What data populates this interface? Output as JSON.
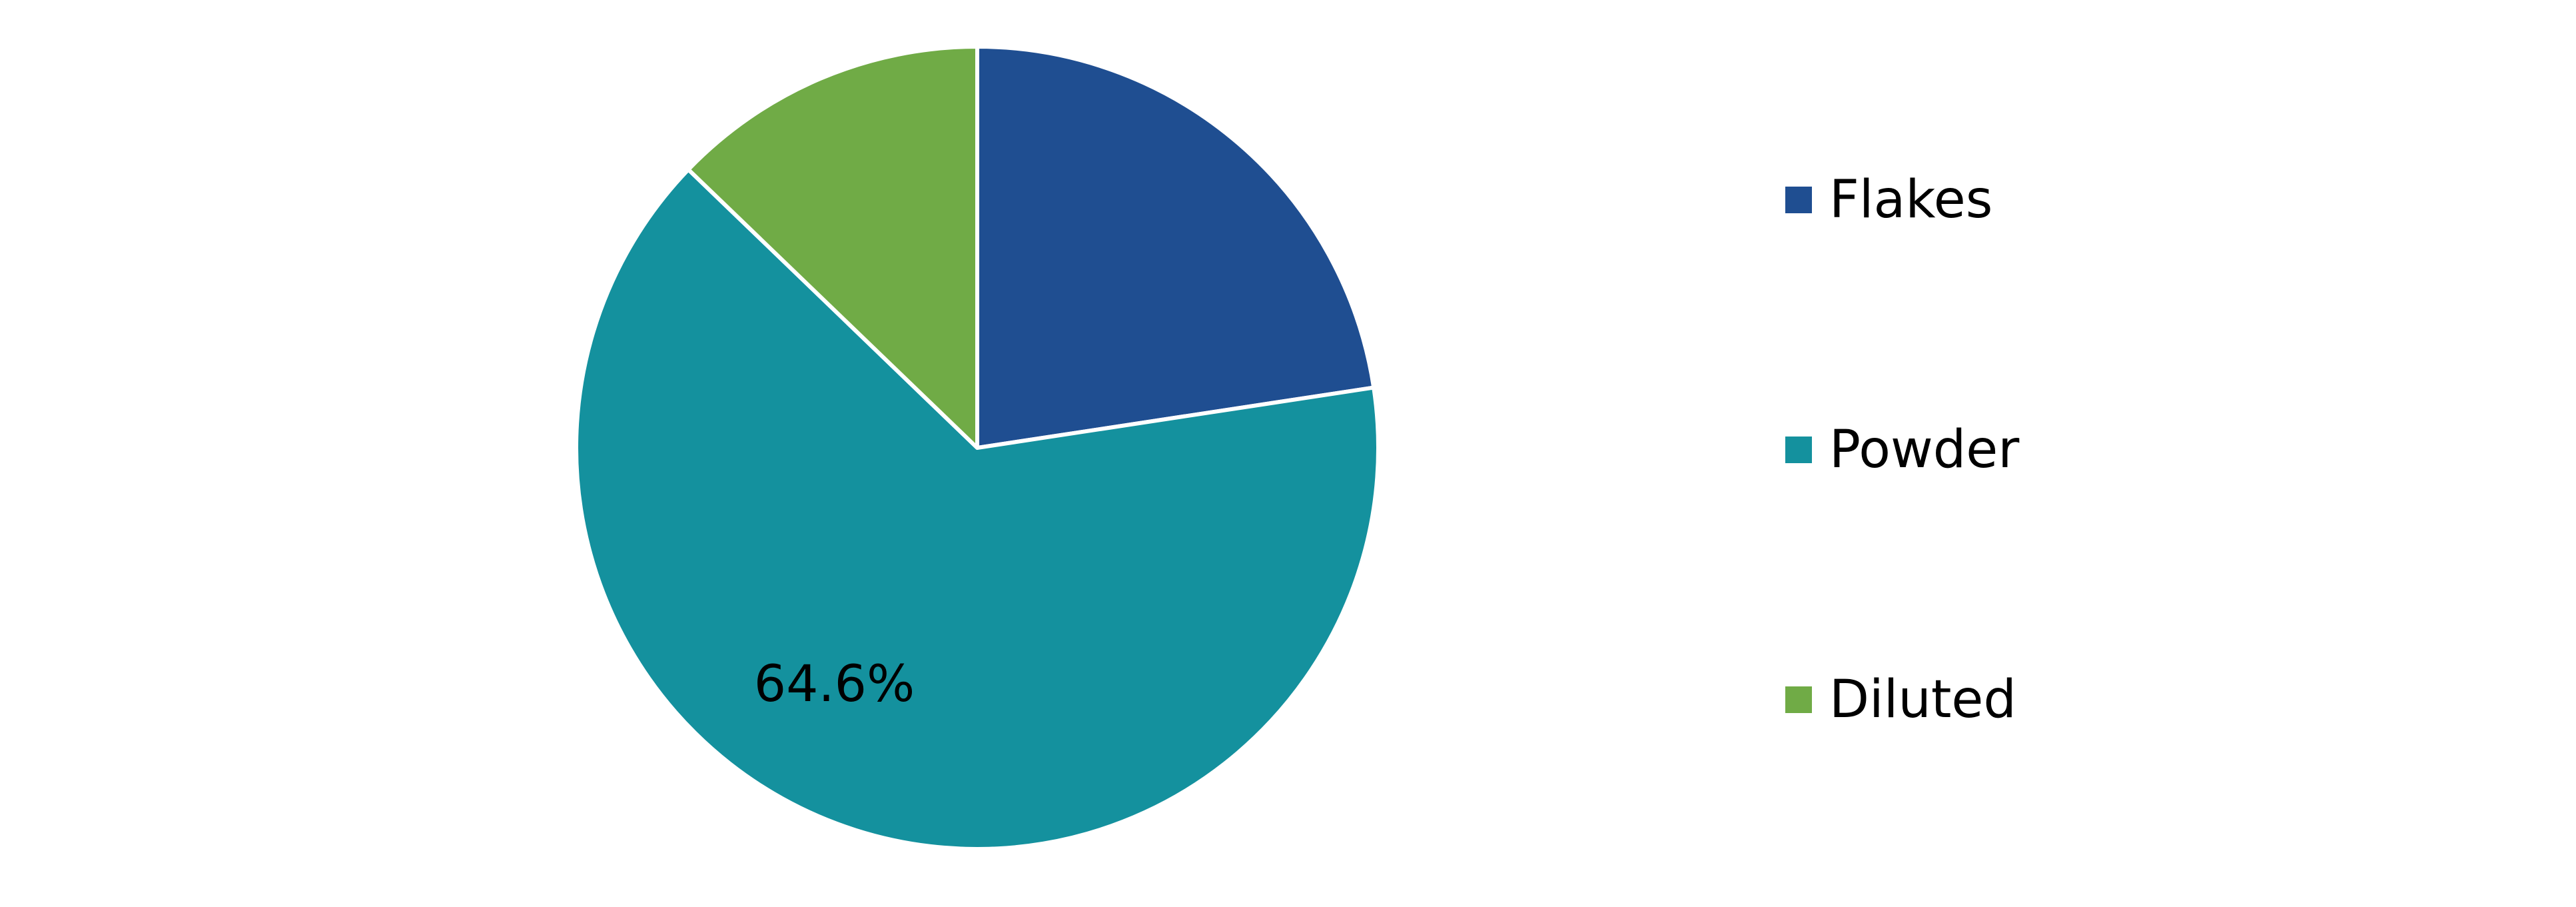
{
  "chart_data": {
    "type": "pie",
    "slices": [
      {
        "label": "Flakes",
        "value": 22.6,
        "color": "#1f4e91",
        "data_label": ""
      },
      {
        "label": "Powder",
        "value": 64.6,
        "color": "#14919e",
        "data_label": "64.6%"
      },
      {
        "label": "Diluted",
        "value": 12.8,
        "color": "#70ab46",
        "data_label": ""
      }
    ],
    "start_angle_deg": 0,
    "direction": "clockwise",
    "legend_position": "right",
    "title": ""
  },
  "legend": {
    "items": [
      {
        "label": "Flakes",
        "color": "#1f4e91"
      },
      {
        "label": "Powder",
        "color": "#14919e"
      },
      {
        "label": "Diluted",
        "color": "#70ab46"
      }
    ]
  }
}
